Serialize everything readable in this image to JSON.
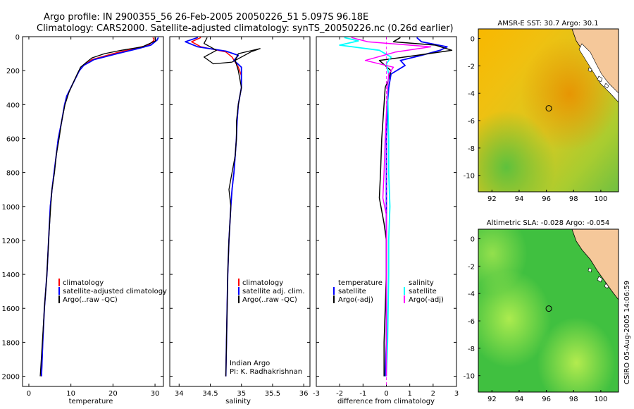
{
  "title_line1": "Argo profile: IN 2900355_56 26-Feb-2005 20050226_51 5.097S 96.18E",
  "title_line2": "Climatology: CARS2000. Satellite-adjusted climatology: synTS_20050226.nc (0.26d earlier)",
  "credit": "CSIRO 05-Aug-2005 14:06:59",
  "colors": {
    "climatology": "#ff0000",
    "satellite": "#0000ff",
    "argo": "#000000",
    "sal_sat": "#00ffff",
    "sal_adj": "#ff00ff"
  },
  "chart_data": [
    {
      "type": "line",
      "name": "temperature",
      "xlabel": "temperature",
      "xlim": [
        -1.5,
        32
      ],
      "ylim": [
        2060,
        0
      ],
      "xticks": [
        "0",
        "10",
        "20",
        "30"
      ],
      "xtick_values": [
        0,
        10,
        20,
        30
      ],
      "yticks": [
        "0",
        "200",
        "400",
        "600",
        "800",
        "1000",
        "1200",
        "1400",
        "1600",
        "1800",
        "2000"
      ],
      "ytick_values": [
        0,
        200,
        400,
        600,
        800,
        1000,
        1200,
        1400,
        1600,
        1800,
        2000
      ],
      "series": [
        {
          "name": "climatology",
          "color": "#ff0000",
          "width": 1.5,
          "points": [
            [
              29.5,
              5
            ],
            [
              29.8,
              20
            ],
            [
              28.5,
              50
            ],
            [
              25,
              70
            ],
            [
              20,
              100
            ],
            [
              15,
              135
            ],
            [
              13,
              170
            ],
            [
              12,
              200
            ],
            [
              11,
              250
            ],
            [
              10,
              300
            ],
            [
              9,
              350
            ],
            [
              8.5,
              400
            ],
            [
              7.8,
              500
            ],
            [
              7,
              600
            ],
            [
              6.5,
              700
            ],
            [
              6,
              800
            ],
            [
              5.5,
              900
            ],
            [
              5.1,
              1000
            ],
            [
              4.7,
              1200
            ],
            [
              4.3,
              1400
            ],
            [
              3.7,
              1600
            ],
            [
              3.3,
              1800
            ],
            [
              3,
              2000
            ]
          ]
        },
        {
          "name": "satellite-adjusted climatology",
          "color": "#0000ff",
          "width": 1.8,
          "points": [
            [
              30.8,
              5
            ],
            [
              30.5,
              20
            ],
            [
              29,
              50
            ],
            [
              26,
              70
            ],
            [
              21,
              100
            ],
            [
              15.5,
              135
            ],
            [
              13,
              170
            ],
            [
              12,
              200
            ],
            [
              11,
              250
            ],
            [
              10,
              300
            ],
            [
              9,
              350
            ],
            [
              8.5,
              400
            ],
            [
              7.8,
              500
            ],
            [
              7,
              600
            ],
            [
              6.5,
              700
            ],
            [
              6,
              800
            ],
            [
              5.5,
              900
            ],
            [
              5.1,
              1000
            ],
            [
              4.7,
              1200
            ],
            [
              4.3,
              1400
            ],
            [
              3.7,
              1600
            ],
            [
              3.3,
              1800
            ],
            [
              3,
              2000
            ]
          ]
        },
        {
          "name": "Argo(..raw -QC)",
          "color": "#000000",
          "width": 1.3,
          "points": [
            [
              30.1,
              5
            ],
            [
              30.1,
              25
            ],
            [
              27,
              60
            ],
            [
              22,
              80
            ],
            [
              18,
              100
            ],
            [
              15,
              125
            ],
            [
              13.5,
              155
            ],
            [
              12.3,
              180
            ],
            [
              11.5,
              220
            ],
            [
              10.4,
              280
            ],
            [
              9.5,
              330
            ],
            [
              8.6,
              400
            ],
            [
              7.8,
              500
            ],
            [
              7.2,
              600
            ],
            [
              6.5,
              700
            ],
            [
              6.1,
              800
            ],
            [
              5.5,
              900
            ],
            [
              5.2,
              1000
            ],
            [
              4.7,
              1200
            ],
            [
              4.3,
              1400
            ],
            [
              3.7,
              1600
            ],
            [
              3.2,
              1800
            ],
            [
              2.7,
              2000
            ]
          ]
        }
      ],
      "legend": {
        "position": "lower-middle",
        "entries": [
          "climatology",
          "satellite-adjusted climatology",
          "Argo(..raw -QC)"
        ]
      }
    },
    {
      "type": "line",
      "name": "salinity",
      "xlabel": "salinity",
      "xlim": [
        33.85,
        36.1
      ],
      "ylim": [
        2060,
        0
      ],
      "xticks": [
        "34",
        "34.5",
        "35",
        "35.5",
        "36"
      ],
      "xtick_values": [
        34,
        34.5,
        35,
        35.5,
        36
      ],
      "series": [
        {
          "name": "climatology",
          "color": "#ff0000",
          "width": 1.5,
          "points": [
            [
              34.35,
              5
            ],
            [
              34.2,
              30
            ],
            [
              34.35,
              60
            ],
            [
              34.75,
              90
            ],
            [
              34.85,
              120
            ],
            [
              34.95,
              180
            ],
            [
              35,
              230
            ],
            [
              35,
              300
            ],
            [
              34.95,
              400
            ],
            [
              34.93,
              500
            ],
            [
              34.92,
              600
            ],
            [
              34.9,
              700
            ],
            [
              34.88,
              800
            ],
            [
              34.85,
              900
            ],
            [
              34.83,
              1000
            ],
            [
              34.8,
              1200
            ],
            [
              34.78,
              1400
            ],
            [
              34.77,
              1600
            ],
            [
              34.76,
              1800
            ],
            [
              34.75,
              2000
            ]
          ]
        },
        {
          "name": "satellite adj. clim.",
          "color": "#0000ff",
          "width": 1.8,
          "points": [
            [
              34.3,
              5
            ],
            [
              34.1,
              30
            ],
            [
              34.3,
              60
            ],
            [
              34.75,
              85
            ],
            [
              34.95,
              110
            ],
            [
              34.88,
              140
            ],
            [
              35,
              180
            ],
            [
              35,
              250
            ],
            [
              35,
              300
            ],
            [
              34.95,
              400
            ],
            [
              34.93,
              500
            ],
            [
              34.92,
              600
            ],
            [
              34.9,
              700
            ],
            [
              34.88,
              800
            ],
            [
              34.85,
              900
            ],
            [
              34.83,
              1000
            ],
            [
              34.8,
              1200
            ],
            [
              34.78,
              1400
            ],
            [
              34.77,
              1600
            ],
            [
              34.76,
              1800
            ],
            [
              34.75,
              2000
            ]
          ]
        },
        {
          "name": "Argo(..raw -QC)",
          "color": "#000000",
          "width": 1.3,
          "points": [
            [
              34.45,
              5
            ],
            [
              34.4,
              40
            ],
            [
              34.6,
              80
            ],
            [
              34.4,
              120
            ],
            [
              34.55,
              160
            ],
            [
              34.85,
              150
            ],
            [
              35.15,
              90
            ],
            [
              35.3,
              70
            ],
            [
              34.95,
              100
            ],
            [
              34.9,
              140
            ],
            [
              34.95,
              200
            ],
            [
              35,
              300
            ],
            [
              34.95,
              400
            ],
            [
              34.92,
              500
            ],
            [
              34.92,
              600
            ],
            [
              34.9,
              700
            ],
            [
              34.85,
              800
            ],
            [
              34.8,
              900
            ],
            [
              34.83,
              1000
            ],
            [
              34.8,
              1200
            ],
            [
              34.78,
              1400
            ],
            [
              34.77,
              1600
            ],
            [
              34.76,
              1800
            ],
            [
              34.75,
              2000
            ]
          ]
        }
      ],
      "legend": {
        "position": "lower-middle",
        "entries": [
          "climatology",
          "satellite adj. clim.",
          "Argo(..raw -QC)"
        ]
      },
      "annotation": [
        "Indian Argo",
        "PI: K. Radhakrishnan"
      ]
    },
    {
      "type": "line",
      "name": "difference",
      "xlabel": "difference from climatology",
      "xlim": [
        -3,
        3
      ],
      "ylim": [
        2060,
        0
      ],
      "xticks": [
        "-3",
        "-2",
        "-1",
        "0",
        "1",
        "2",
        "3"
      ],
      "xtick_values": [
        -3,
        -2,
        -1,
        0,
        1,
        2,
        3
      ],
      "series": [
        {
          "name": "temperature satellite",
          "color": "#0000ff",
          "width": 1.8,
          "points": [
            [
              1.3,
              5
            ],
            [
              1.5,
              30
            ],
            [
              2.6,
              60
            ],
            [
              2.3,
              80
            ],
            [
              1.5,
              110
            ],
            [
              0.6,
              140
            ],
            [
              0.8,
              170
            ],
            [
              0.2,
              220
            ],
            [
              0.1,
              300
            ],
            [
              0.05,
              400
            ],
            [
              0,
              600
            ],
            [
              0,
              800
            ],
            [
              0,
              1000
            ],
            [
              0,
              1400
            ],
            [
              0,
              1800
            ],
            [
              -0.05,
              2000
            ]
          ]
        },
        {
          "name": "temperature Argo(-adj)",
          "color": "#000000",
          "width": 1.5,
          "points": [
            [
              0.6,
              5
            ],
            [
              0.3,
              30
            ],
            [
              2.1,
              50
            ],
            [
              2.8,
              80
            ],
            [
              1.3,
              110
            ],
            [
              -0.3,
              140
            ],
            [
              0.2,
              200
            ],
            [
              0.1,
              250
            ],
            [
              -0.05,
              300
            ],
            [
              -0.2,
              600
            ],
            [
              -0.25,
              800
            ],
            [
              -0.3,
              950
            ],
            [
              -0.1,
              1100
            ],
            [
              0,
              1200
            ],
            [
              0,
              1400
            ],
            [
              -0.1,
              1800
            ],
            [
              -0.1,
              2000
            ]
          ]
        },
        {
          "name": "salinity satellite",
          "color": "#00ffff",
          "width": 1.8,
          "points": [
            [
              -1.8,
              5
            ],
            [
              -1.2,
              25
            ],
            [
              -2,
              50
            ],
            [
              -0.3,
              80
            ],
            [
              0.2,
              120
            ],
            [
              0,
              160
            ],
            [
              0.1,
              220
            ],
            [
              0.05,
              300
            ],
            [
              0.1,
              600
            ],
            [
              0.1,
              800
            ],
            [
              0.15,
              1000
            ],
            [
              0.1,
              1200
            ],
            [
              0.1,
              1400
            ],
            [
              0.05,
              1800
            ],
            [
              0,
              2000
            ]
          ]
        },
        {
          "name": "salinity Argo(-adj)",
          "color": "#ff00ff",
          "width": 1.5,
          "points": [
            [
              -1.5,
              5
            ],
            [
              -0.8,
              30
            ],
            [
              1.9,
              60
            ],
            [
              0.4,
              90
            ],
            [
              -0.9,
              140
            ],
            [
              0.3,
              180
            ],
            [
              0.1,
              220
            ],
            [
              0.05,
              300
            ],
            [
              -0.05,
              600
            ],
            [
              -0.1,
              800
            ],
            [
              -0.15,
              950
            ],
            [
              0,
              1050
            ],
            [
              0,
              1200
            ],
            [
              0,
              1800
            ],
            [
              0,
              2000
            ]
          ]
        }
      ],
      "legend": {
        "position": "lower",
        "left_entries": [
          "temperature",
          "satellite",
          "Argo(-adj)"
        ],
        "right_entries": [
          "salinity",
          "satellite",
          "Argo(-adj)"
        ]
      }
    },
    {
      "type": "heatmap",
      "name": "sst-map",
      "title": "AMSR-E SST: 30.7 Argo: 30.1",
      "xlim": [
        91,
        101.3
      ],
      "ylim": [
        -11.2,
        0.7
      ],
      "xticks": [
        "92",
        "94",
        "96",
        "98",
        "100"
      ],
      "xtick_values": [
        92,
        94,
        96,
        98,
        100
      ],
      "yticks": [
        "0",
        "-2",
        "-4",
        "-6",
        "-8",
        "-10"
      ],
      "ytick_values": [
        0,
        -2,
        -4,
        -6,
        -8,
        -10
      ],
      "marker": {
        "lon": 96.18,
        "lat": -5.1
      }
    },
    {
      "type": "heatmap",
      "name": "sla-map",
      "title": "Altimetric SLA: -0.028 Argo: -0.054",
      "xlim": [
        91,
        101.3
      ],
      "ylim": [
        -11.2,
        0.7
      ],
      "xticks": [
        "92",
        "94",
        "96",
        "98",
        "100"
      ],
      "xtick_values": [
        92,
        94,
        96,
        98,
        100
      ],
      "yticks": [
        "0",
        "-2",
        "-4",
        "-6",
        "-8",
        "-10"
      ],
      "ytick_values": [
        0,
        -2,
        -4,
        -6,
        -8,
        -10
      ],
      "marker": {
        "lon": 96.18,
        "lat": -5.1
      }
    }
  ]
}
